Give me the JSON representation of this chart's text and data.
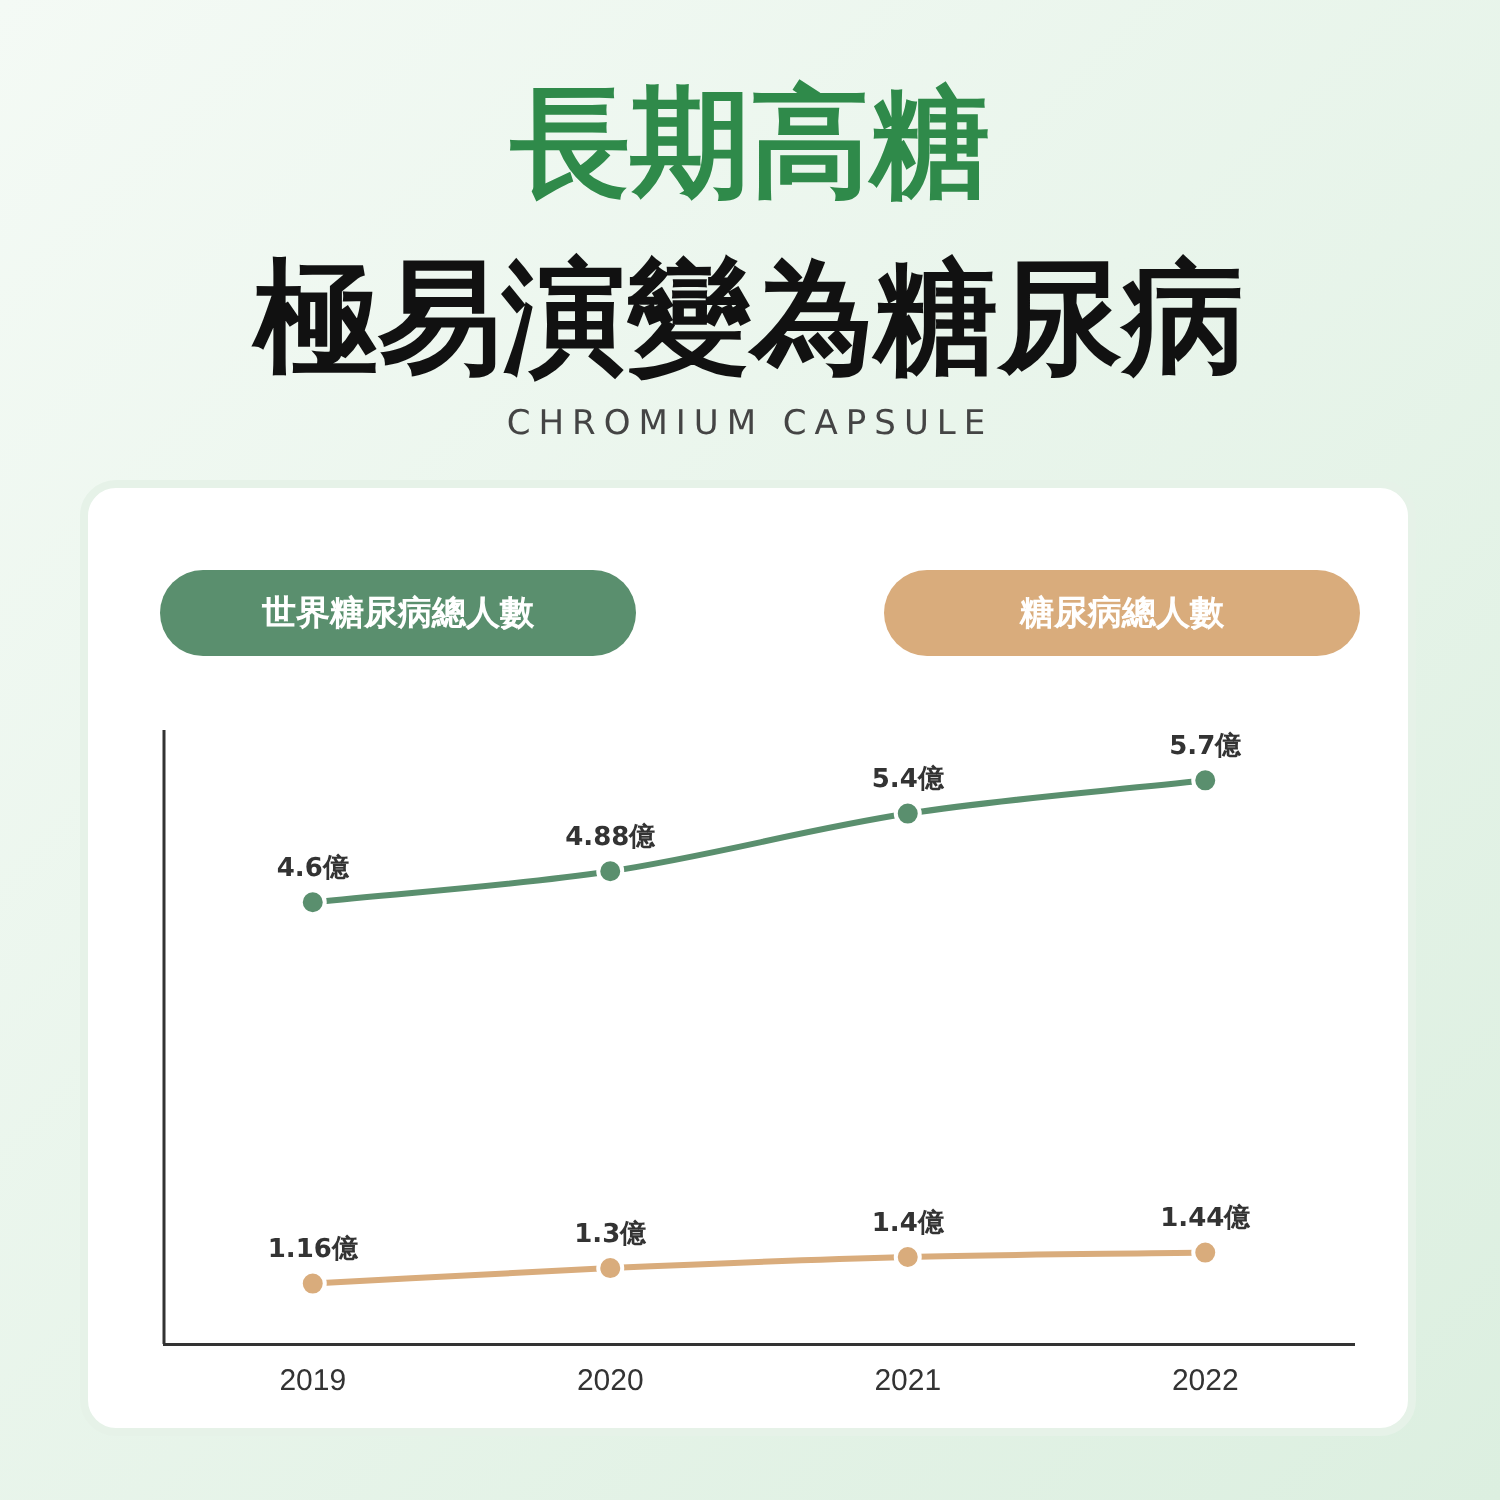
{
  "chart_data": {
    "type": "line",
    "title": "長期高糖",
    "subtitle": "極易演變為糖尿病",
    "annotations": [
      "CHROMIUM CAPSULE"
    ],
    "categories": [
      "2019",
      "2020",
      "2021",
      "2022"
    ],
    "series": [
      {
        "name": "世界糖尿病總人數",
        "color": "#5a8f6e",
        "values": [
          4.6,
          4.88,
          5.4,
          5.7
        ],
        "value_labels": [
          "4.6億",
          "4.88億",
          "5.4億",
          "5.7億"
        ]
      },
      {
        "name": "糖尿病總人數",
        "color": "#d9ac7c",
        "values": [
          1.16,
          1.3,
          1.4,
          1.44
        ],
        "value_labels": [
          "1.16億",
          "1.3億",
          "1.4億",
          "1.44億"
        ]
      }
    ],
    "marker": "circle",
    "legend": "top",
    "tick_labels": "x",
    "grid": false
  }
}
